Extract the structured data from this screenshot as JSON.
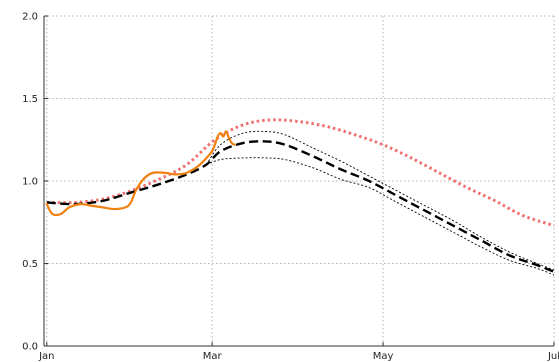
{
  "chart_data": {
    "type": "line",
    "title": "",
    "xlabel": "",
    "ylabel": "",
    "x_ticks": [
      {
        "label": "Jan",
        "day": 0
      },
      {
        "label": "Mar",
        "day": 59
      },
      {
        "label": "May",
        "day": 120
      },
      {
        "label": "Jul",
        "day": 181
      }
    ],
    "y_ticks": [
      {
        "label": "0.0",
        "value": 0.0
      },
      {
        "label": "0.5",
        "value": 0.5
      },
      {
        "label": "1.0",
        "value": 1.0
      },
      {
        "label": "1.5",
        "value": 1.5
      },
      {
        "label": "2.0",
        "value": 2.0
      }
    ],
    "xlim": [
      -1,
      181
    ],
    "ylim": [
      0,
      2
    ],
    "grid": true,
    "legend": "none",
    "series": [
      {
        "style": "dotted",
        "color": "#f07070",
        "points": [
          [
            0,
            0.87
          ],
          [
            10,
            0.87
          ],
          [
            20,
            0.89
          ],
          [
            30,
            0.94
          ],
          [
            40,
            1.01
          ],
          [
            50,
            1.1
          ],
          [
            60,
            1.25
          ],
          [
            70,
            1.34
          ],
          [
            80,
            1.37
          ],
          [
            90,
            1.36
          ],
          [
            100,
            1.33
          ],
          [
            110,
            1.28
          ],
          [
            120,
            1.22
          ],
          [
            130,
            1.14
          ],
          [
            140,
            1.05
          ],
          [
            150,
            0.96
          ],
          [
            160,
            0.88
          ],
          [
            170,
            0.79
          ],
          [
            181,
            0.73
          ]
        ]
      },
      {
        "style": "dashed",
        "color": "#000000",
        "points": [
          [
            0,
            0.87
          ],
          [
            10,
            0.86
          ],
          [
            20,
            0.88
          ],
          [
            30,
            0.93
          ],
          [
            40,
            0.98
          ],
          [
            50,
            1.04
          ],
          [
            57,
            1.1
          ],
          [
            62,
            1.18
          ],
          [
            70,
            1.23
          ],
          [
            78,
            1.24
          ],
          [
            85,
            1.22
          ],
          [
            95,
            1.15
          ],
          [
            105,
            1.07
          ],
          [
            115,
            1.0
          ],
          [
            125,
            0.91
          ],
          [
            135,
            0.82
          ],
          [
            145,
            0.73
          ],
          [
            155,
            0.64
          ],
          [
            165,
            0.55
          ],
          [
            175,
            0.49
          ],
          [
            181,
            0.45
          ]
        ]
      },
      {
        "style": "fine-dotted",
        "color": "#000000",
        "points": [
          [
            57,
            1.1
          ],
          [
            62,
            1.22
          ],
          [
            70,
            1.29
          ],
          [
            78,
            1.3
          ],
          [
            85,
            1.28
          ],
          [
            95,
            1.2
          ],
          [
            105,
            1.12
          ],
          [
            115,
            1.03
          ],
          [
            125,
            0.94
          ],
          [
            135,
            0.85
          ],
          [
            145,
            0.76
          ],
          [
            155,
            0.66
          ],
          [
            165,
            0.57
          ],
          [
            175,
            0.5
          ],
          [
            181,
            0.46
          ]
        ]
      },
      {
        "style": "fine-dotted",
        "color": "#000000",
        "points": [
          [
            57,
            1.1
          ],
          [
            62,
            1.13
          ],
          [
            70,
            1.14
          ],
          [
            78,
            1.14
          ],
          [
            85,
            1.13
          ],
          [
            95,
            1.08
          ],
          [
            105,
            1.01
          ],
          [
            115,
            0.96
          ],
          [
            125,
            0.87
          ],
          [
            135,
            0.78
          ],
          [
            145,
            0.69
          ],
          [
            155,
            0.6
          ],
          [
            165,
            0.52
          ],
          [
            175,
            0.47
          ],
          [
            181,
            0.43
          ]
        ]
      },
      {
        "style": "solid",
        "color": "#f08010",
        "points": [
          [
            0,
            0.86
          ],
          [
            2,
            0.8
          ],
          [
            5,
            0.8
          ],
          [
            8,
            0.84
          ],
          [
            12,
            0.86
          ],
          [
            16,
            0.85
          ],
          [
            20,
            0.84
          ],
          [
            24,
            0.83
          ],
          [
            28,
            0.84
          ],
          [
            30,
            0.87
          ],
          [
            32,
            0.95
          ],
          [
            35,
            1.02
          ],
          [
            38,
            1.05
          ],
          [
            42,
            1.05
          ],
          [
            46,
            1.04
          ],
          [
            50,
            1.05
          ],
          [
            54,
            1.09
          ],
          [
            57,
            1.14
          ],
          [
            59,
            1.18
          ],
          [
            60,
            1.22
          ],
          [
            61,
            1.27
          ],
          [
            62,
            1.29
          ],
          [
            63,
            1.27
          ],
          [
            64,
            1.3
          ],
          [
            65,
            1.26
          ],
          [
            66,
            1.23
          ],
          [
            67,
            1.22
          ]
        ]
      }
    ]
  }
}
